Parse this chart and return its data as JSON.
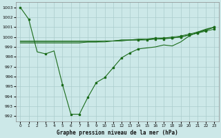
{
  "title": "Graphe pression niveau de la mer (hPa)",
  "background_color": "#cce8e8",
  "grid_color": "#aacccc",
  "line_color": "#1a6b1a",
  "xlim": [
    -0.5,
    23.5
  ],
  "ylim": [
    991.5,
    1003.5
  ],
  "yticks": [
    992,
    993,
    994,
    995,
    996,
    997,
    998,
    999,
    1000,
    1001,
    1002,
    1003
  ],
  "xticks": [
    0,
    1,
    2,
    3,
    4,
    5,
    6,
    7,
    8,
    9,
    10,
    11,
    12,
    13,
    14,
    15,
    16,
    17,
    18,
    19,
    20,
    21,
    22,
    23
  ],
  "series": {
    "line1_x": [
      0,
      1,
      2,
      3,
      4,
      5,
      6,
      7,
      8,
      9,
      10,
      11,
      12,
      13,
      14,
      15,
      16,
      17,
      18,
      19,
      20,
      21,
      22,
      23
    ],
    "line1_y": [
      1003.0,
      1001.8,
      998.5,
      998.3,
      998.6,
      995.2,
      992.2,
      992.2,
      993.9,
      995.4,
      995.9,
      996.9,
      997.9,
      998.4,
      998.8,
      998.9,
      999.0,
      999.2,
      999.1,
      999.5,
      1000.1,
      1000.5,
      1000.8,
      1001.0
    ],
    "line1_markers_x": [
      0,
      1,
      3,
      5,
      6,
      7,
      8,
      9,
      10,
      11,
      12,
      13,
      14
    ],
    "line1_markers_y": [
      1003.0,
      1001.8,
      998.3,
      995.2,
      992.2,
      992.2,
      993.9,
      995.4,
      995.9,
      996.9,
      997.9,
      998.4,
      998.8
    ],
    "line2_x": [
      0,
      1,
      2,
      3,
      4,
      5,
      6,
      7,
      8,
      9,
      10,
      11,
      12,
      13,
      14,
      15,
      16,
      17,
      18,
      19,
      20,
      21,
      22,
      23
    ],
    "line2_y": [
      999.6,
      999.6,
      999.6,
      999.6,
      999.6,
      999.6,
      999.6,
      999.6,
      999.6,
      999.6,
      999.6,
      999.6,
      999.7,
      999.7,
      999.7,
      999.7,
      999.8,
      999.8,
      999.9,
      1000.0,
      1000.2,
      1000.4,
      1000.6,
      1000.8
    ],
    "line2_markers_x": [
      14,
      15,
      16,
      17,
      18,
      19,
      20,
      21,
      22,
      23
    ],
    "line2_markers_y": [
      999.7,
      999.7,
      999.8,
      999.8,
      999.9,
      1000.0,
      1000.2,
      1000.4,
      1000.6,
      1000.8
    ],
    "line3_x": [
      0,
      1,
      2,
      3,
      4,
      5,
      6,
      7,
      8,
      9,
      10,
      11,
      12,
      13,
      14,
      15,
      16,
      17,
      18,
      19,
      20,
      21,
      22,
      23
    ],
    "line3_y": [
      999.5,
      999.5,
      999.5,
      999.5,
      999.5,
      999.5,
      999.5,
      999.5,
      999.5,
      999.5,
      999.6,
      999.6,
      999.7,
      999.7,
      999.8,
      999.8,
      999.9,
      999.9,
      1000.0,
      1000.1,
      1000.3,
      1000.5,
      1000.7,
      1001.0
    ],
    "line3_markers_x": [
      16,
      17,
      18,
      19,
      20,
      21,
      22,
      23
    ],
    "line3_markers_y": [
      999.9,
      999.9,
      1000.0,
      1000.1,
      1000.3,
      1000.5,
      1000.7,
      1001.0
    ],
    "line4_x": [
      0,
      1,
      2,
      3,
      4,
      5,
      6,
      7,
      8,
      9,
      10,
      11,
      12,
      13,
      14,
      15,
      16,
      17,
      18,
      19,
      20,
      21,
      22,
      23
    ],
    "line4_y": [
      999.4,
      999.4,
      999.4,
      999.4,
      999.4,
      999.4,
      999.4,
      999.4,
      999.5,
      999.5,
      999.5,
      999.6,
      999.6,
      999.7,
      999.7,
      999.8,
      999.8,
      999.9,
      999.9,
      1000.0,
      1000.2,
      1000.4,
      1000.7,
      1001.0
    ],
    "line4_markers_x": [
      18,
      19,
      20,
      21,
      22,
      23
    ],
    "line4_markers_y": [
      999.9,
      1000.0,
      1000.2,
      1000.4,
      1000.7,
      1001.0
    ]
  }
}
